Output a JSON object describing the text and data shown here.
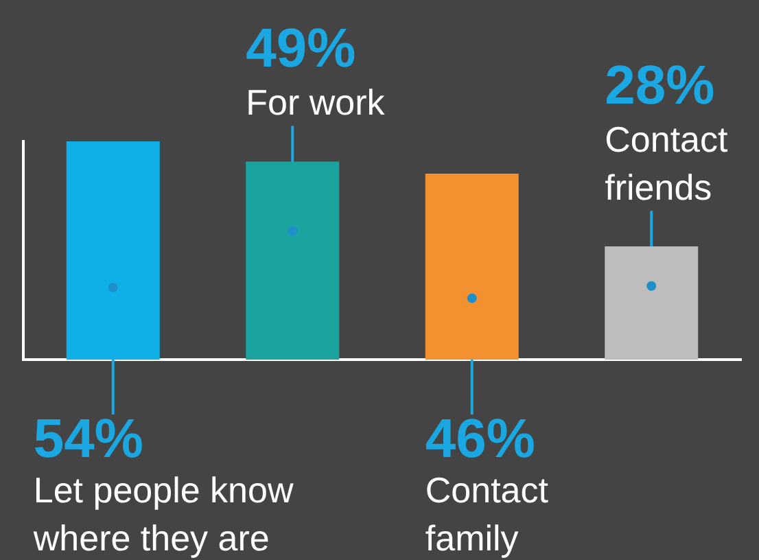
{
  "chart_data": {
    "type": "bar",
    "categories": [
      "Let people know\nwhere they are",
      "For work",
      "Contact\nfamily",
      "Contact\nfriends"
    ],
    "values": [
      54,
      49,
      46,
      28
    ],
    "colors": [
      "#0fb0e8",
      "#1aa39f",
      "#f39131",
      "#bdbdbd"
    ],
    "value_labels": [
      "54%",
      "49%",
      "46%",
      "28%"
    ],
    "ylim": [
      0,
      54
    ],
    "tick_labels": false
  }
}
